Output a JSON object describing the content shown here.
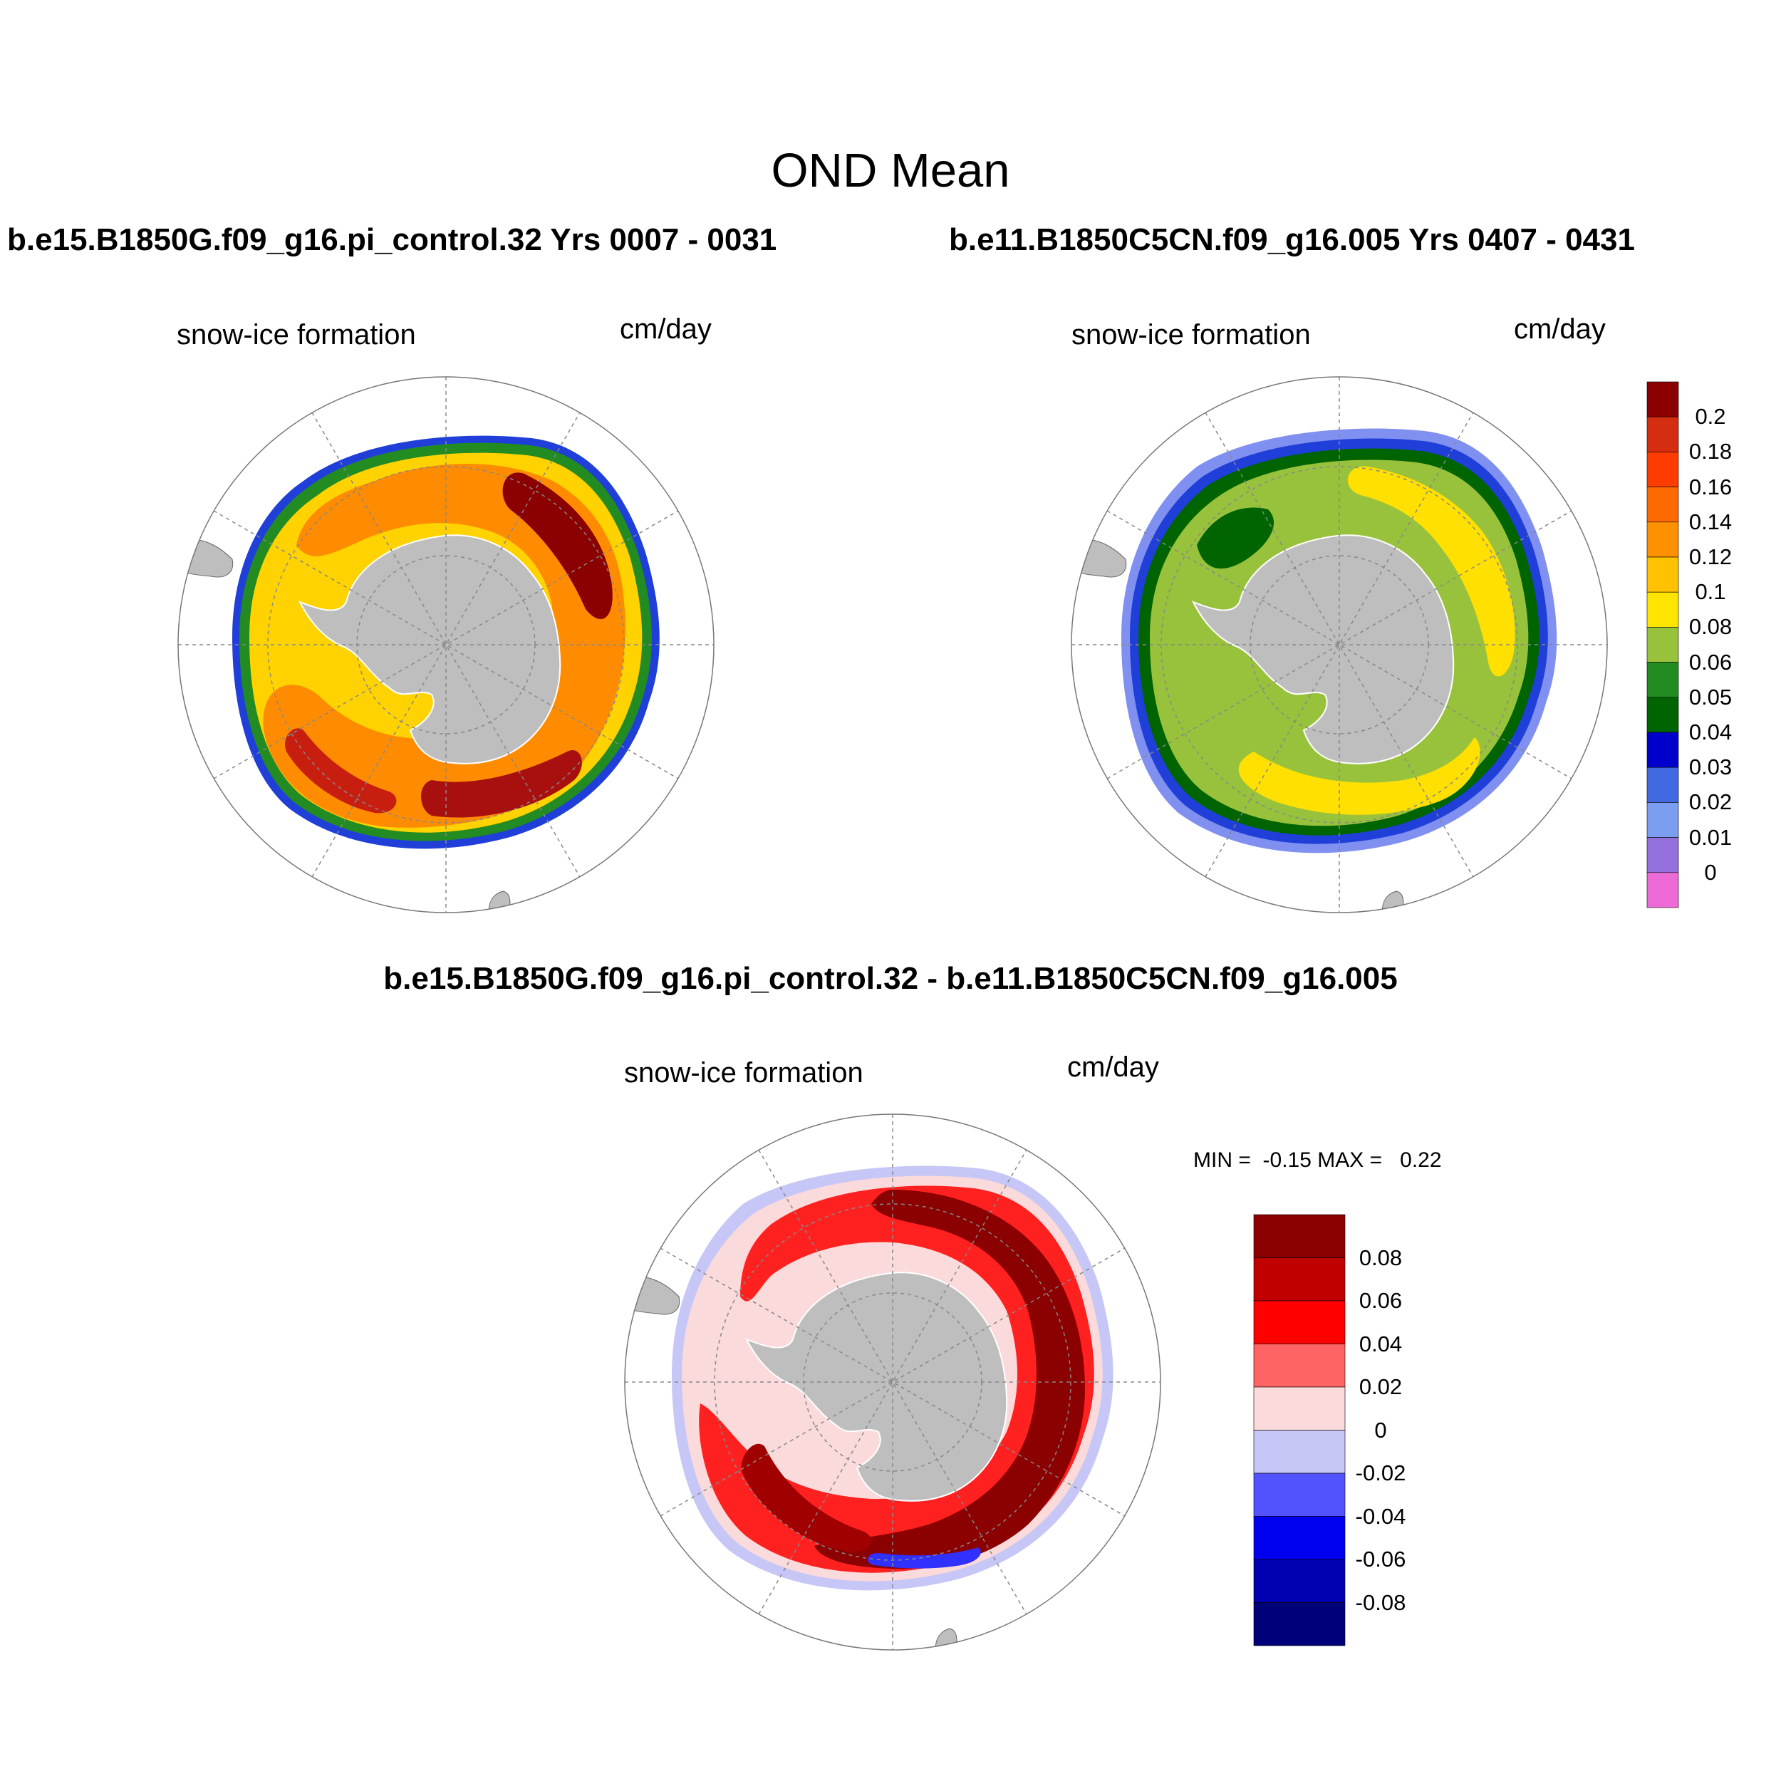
{
  "main_title": "OND Mean",
  "panels": [
    {
      "title": "b.e15.B1850G.f09_g16.pi_control.32  Yrs 0007 - 0031",
      "variable": "snow-ice formation",
      "units": "cm/day"
    },
    {
      "title": "b.e11.B1850C5CN.f09_g16.005  Yrs 0407 - 0431",
      "variable": "snow-ice formation",
      "units": "cm/day"
    }
  ],
  "difference": {
    "title": "b.e15.B1850G.f09_g16.pi_control.32 - b.e11.B1850C5CN.f09_g16.005",
    "variable": "snow-ice formation",
    "units": "cm/day",
    "min_label": "MIN =",
    "min_value": "-0.15",
    "max_label": "MAX =",
    "max_value": "0.22"
  },
  "colorbar_top": {
    "labels": [
      "0.2",
      "0.18",
      "0.16",
      "0.14",
      "0.12",
      "0.1",
      "0.08",
      "0.06",
      "0.05",
      "0.04",
      "0.03",
      "0.02",
      "0.01",
      "0"
    ],
    "colors": [
      "#8b0000",
      "#d42d12",
      "#ff3c00",
      "#ff6a00",
      "#ff9000",
      "#ffc100",
      "#ffe400",
      "#99c23c",
      "#228b22",
      "#006400",
      "#0000cd",
      "#4169e1",
      "#7b9ef0",
      "#9370db",
      "#ee6ad6"
    ]
  },
  "colorbar_diff": {
    "labels": [
      "0.08",
      "0.06",
      "0.04",
      "0.02",
      "0",
      "-0.02",
      "-0.04",
      "-0.06",
      "-0.08"
    ],
    "colors": [
      "#8b0000",
      "#c00000",
      "#ff0000",
      "#ff6464",
      "#fadada",
      "#c6c6f7",
      "#5252ff",
      "#0000f0",
      "#0000b0",
      "#000078"
    ]
  },
  "field_colors": {
    "land": "#bebebe",
    "grid": "#888888"
  }
}
